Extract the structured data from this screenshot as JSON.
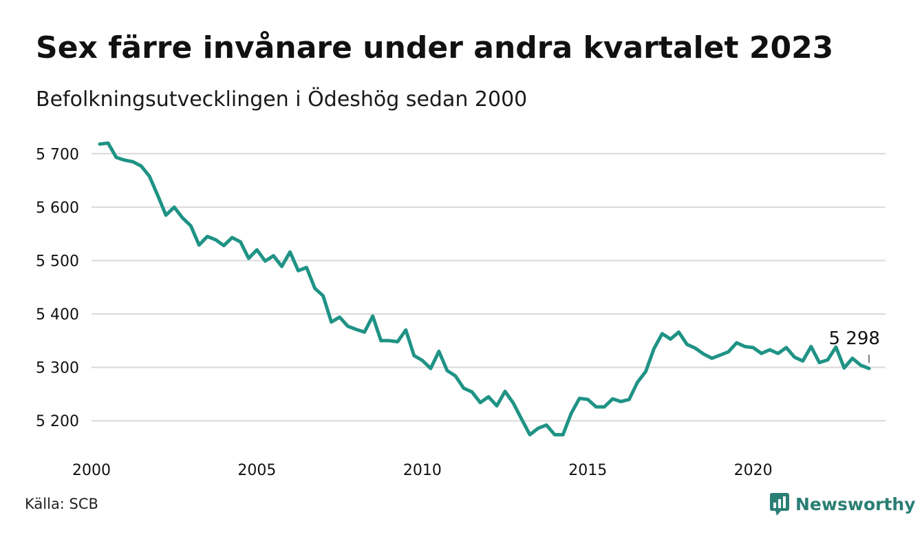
{
  "title": "Sex färre invånare under andra kvartalet 2023",
  "subtitle": "Befolkningsutvecklingen i Ödeshög sedan 2000",
  "source": "Källa: SCB",
  "brand": {
    "name": "Newsworthy",
    "icon": "newsworthy-logo-icon",
    "color": "#2a7f74"
  },
  "colors": {
    "line": "#1f9385",
    "grid": "#d9d9d9",
    "text": "#111111"
  },
  "chart_data": {
    "type": "line",
    "x_unit": "year",
    "xlim": [
      2000,
      2024
    ],
    "ylim": [
      5150,
      5730
    ],
    "yticks": [
      5200,
      5300,
      5400,
      5500,
      5600,
      5700
    ],
    "ytick_labels": [
      "5 200",
      "5 300",
      "5 400",
      "5 500",
      "5 600",
      "5 700"
    ],
    "xticks": [
      2000,
      2005,
      2010,
      2015,
      2020
    ],
    "xtick_labels": [
      "2000",
      "2005",
      "2010",
      "2015",
      "2020"
    ],
    "grid": true,
    "legend": "none",
    "annotation": {
      "x": 2023.5,
      "y": 5298,
      "label": "5 298"
    },
    "x": [
      2000.25,
      2000.5,
      2000.75,
      2001,
      2001.25,
      2001.5,
      2001.75,
      2002,
      2002.25,
      2002.5,
      2002.75,
      2003,
      2003.25,
      2003.5,
      2003.75,
      2004,
      2004.25,
      2004.5,
      2004.75,
      2005,
      2005.25,
      2005.5,
      2005.75,
      2006,
      2006.25,
      2006.5,
      2006.75,
      2007,
      2007.25,
      2007.5,
      2007.75,
      2008,
      2008.25,
      2008.5,
      2008.75,
      2009,
      2009.25,
      2009.5,
      2009.75,
      2010,
      2010.25,
      2010.5,
      2010.75,
      2011,
      2011.25,
      2011.5,
      2011.75,
      2012,
      2012.25,
      2012.5,
      2012.75,
      2013,
      2013.25,
      2013.5,
      2013.75,
      2014,
      2014.25,
      2014.5,
      2014.75,
      2015,
      2015.25,
      2015.5,
      2015.75,
      2016,
      2016.25,
      2016.5,
      2016.75,
      2017,
      2017.25,
      2017.5,
      2017.75,
      2018,
      2018.25,
      2018.5,
      2018.75,
      2019,
      2019.25,
      2019.5,
      2019.75,
      2020,
      2020.25,
      2020.5,
      2020.75,
      2021,
      2021.25,
      2021.5,
      2021.75,
      2022,
      2022.25,
      2022.5,
      2022.75,
      2023,
      2023.25,
      2023.5
    ],
    "series": [
      {
        "values": [
          5718,
          5720,
          5693,
          5688,
          5685,
          5677,
          5658,
          5622,
          5585,
          5600,
          5580,
          5565,
          5529,
          5545,
          5539,
          5528,
          5543,
          5535,
          5504,
          5520,
          5499,
          5509,
          5489,
          5516,
          5481,
          5487,
          5448,
          5434,
          5385,
          5394,
          5377,
          5371,
          5366,
          5396,
          5350,
          5350,
          5348,
          5370,
          5322,
          5313,
          5298,
          5330,
          5294,
          5284,
          5261,
          5254,
          5234,
          5245,
          5228,
          5255,
          5233,
          5203,
          5174,
          5186,
          5192,
          5174,
          5174,
          5214,
          5242,
          5240,
          5226,
          5226,
          5241,
          5236,
          5240,
          5272,
          5292,
          5335,
          5363,
          5353,
          5366,
          5343,
          5336,
          5325,
          5317,
          5323,
          5329,
          5346,
          5339,
          5337,
          5326,
          5333,
          5326,
          5337,
          5319,
          5312,
          5339,
          5309,
          5314,
          5338,
          5299,
          5317,
          5304,
          5298
        ]
      }
    ]
  }
}
